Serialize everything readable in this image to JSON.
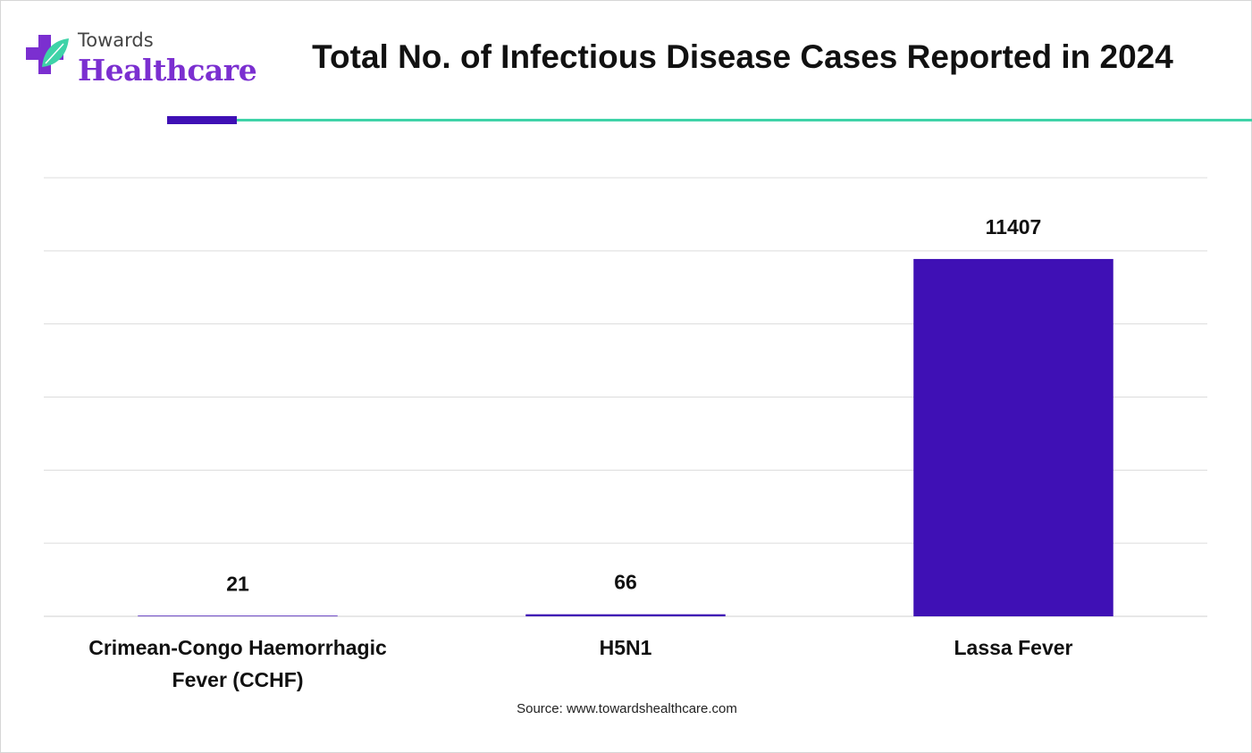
{
  "brand": {
    "top": "Towards",
    "main": "Healthcare",
    "icon": "medical-cross-leaf-icon",
    "colors": {
      "purple": "#7b2fd0",
      "green": "#3fd3a8"
    }
  },
  "title": "Total No. of Infectious Disease Cases Reported in 2024",
  "source": "Source: www.towardshealthcare.com",
  "chart_data": {
    "type": "bar",
    "title": "Total No. of Infectious Disease Cases Reported in 2024",
    "xlabel": "",
    "ylabel": "",
    "categories": [
      [
        "Crimean-Congo Haemorrhagic",
        "Fever (CCHF)"
      ],
      [
        "H5N1"
      ],
      [
        "Lassa Fever"
      ]
    ],
    "values": [
      21,
      66,
      11407
    ],
    "data_labels": [
      "21",
      "66",
      "11407"
    ],
    "ylim": [
      0,
      14000
    ],
    "gridlines": [
      0,
      2333,
      4667,
      7000,
      9333,
      11667,
      14000
    ],
    "grid": true,
    "bar_color": "#3f10b5",
    "legend": "none"
  }
}
